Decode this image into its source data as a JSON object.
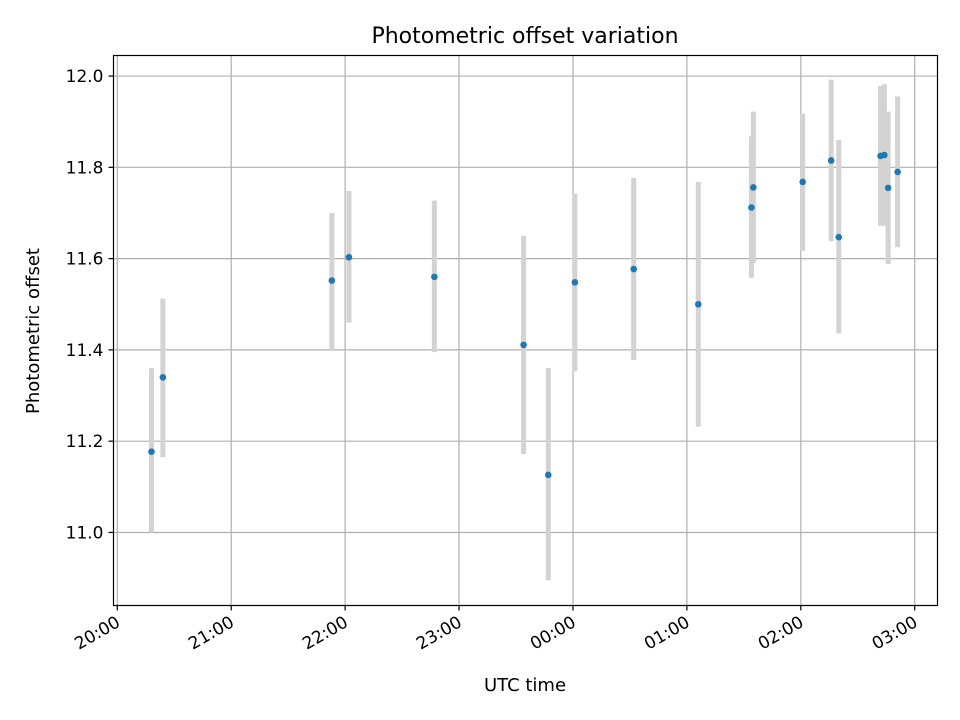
{
  "chart_data": {
    "type": "scatter",
    "title": "Photometric offset variation",
    "xlabel": "UTC time",
    "ylabel": "Photometric offset",
    "x_unit": "UTC time (HH:MM)",
    "x_ticks": [
      "20:00",
      "21:00",
      "22:00",
      "23:00",
      "00:00",
      "01:00",
      "02:00",
      "03:00"
    ],
    "y_ticks": [
      "11.0",
      "11.2",
      "11.4",
      "11.6",
      "11.8",
      "12.0"
    ],
    "xlim": [
      "19:58",
      "03:12"
    ],
    "ylim": [
      10.84,
      12.045
    ],
    "grid": true,
    "marker_color": "#1f77b4",
    "errorbar_color": "#d3d3d3",
    "points": [
      {
        "t": "20:18",
        "y": 11.177,
        "lo": 11.0,
        "hi": 11.36
      },
      {
        "t": "20:24",
        "y": 11.34,
        "lo": 11.165,
        "hi": 11.512
      },
      {
        "t": "21:53",
        "y": 11.552,
        "lo": 11.4,
        "hi": 11.7
      },
      {
        "t": "22:02",
        "y": 11.603,
        "lo": 11.46,
        "hi": 11.748
      },
      {
        "t": "22:47",
        "y": 11.56,
        "lo": 11.395,
        "hi": 11.727
      },
      {
        "t": "23:34",
        "y": 11.411,
        "lo": 11.172,
        "hi": 11.65
      },
      {
        "t": "23:47",
        "y": 11.126,
        "lo": 10.895,
        "hi": 11.36
      },
      {
        "t": "00:01",
        "y": 11.548,
        "lo": 11.353,
        "hi": 11.742
      },
      {
        "t": "00:32",
        "y": 11.577,
        "lo": 11.378,
        "hi": 11.777
      },
      {
        "t": "01:06",
        "y": 11.5,
        "lo": 11.232,
        "hi": 11.768
      },
      {
        "t": "01:34",
        "y": 11.712,
        "lo": 11.558,
        "hi": 11.868
      },
      {
        "t": "01:35",
        "y": 11.756,
        "lo": 11.59,
        "hi": 11.922
      },
      {
        "t": "02:01",
        "y": 11.768,
        "lo": 11.617,
        "hi": 11.918
      },
      {
        "t": "02:16",
        "y": 11.815,
        "lo": 11.638,
        "hi": 11.992
      },
      {
        "t": "02:20",
        "y": 11.647,
        "lo": 11.436,
        "hi": 11.86
      },
      {
        "t": "02:42",
        "y": 11.825,
        "lo": 11.672,
        "hi": 11.978
      },
      {
        "t": "02:44",
        "y": 11.827,
        "lo": 11.672,
        "hi": 11.982
      },
      {
        "t": "02:46",
        "y": 11.755,
        "lo": 11.588,
        "hi": 11.922
      },
      {
        "t": "02:51",
        "y": 11.79,
        "lo": 11.625,
        "hi": 11.955
      }
    ]
  }
}
